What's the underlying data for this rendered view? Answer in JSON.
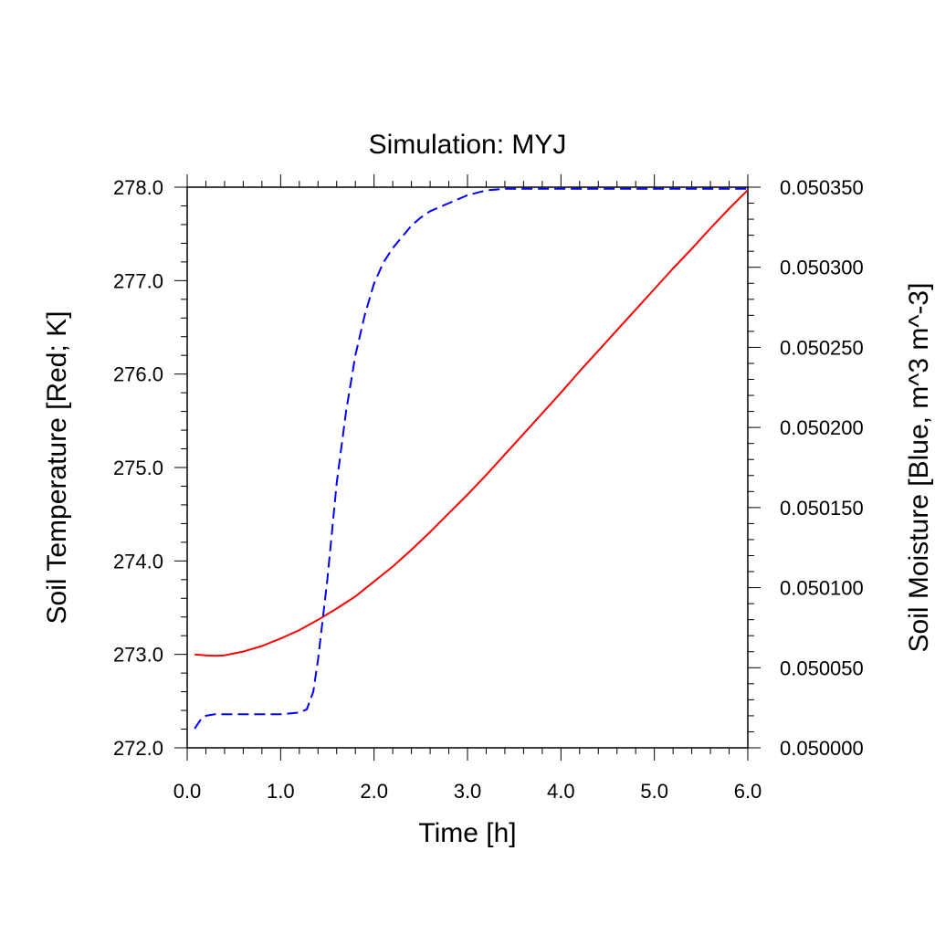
{
  "chart_data": {
    "type": "line",
    "title": "Simulation: MYJ",
    "xlabel": "Time [h]",
    "ylabel_left": "Soil Temperature [Red; K]",
    "ylabel_right": "Soil Moisture [Blue, m^3 m^-3]",
    "xlim": [
      0,
      6
    ],
    "ylim_left": [
      272,
      278
    ],
    "ylim_right": [
      0.05,
      0.05035
    ],
    "x_ticks": [
      "0.0",
      "1.0",
      "2.0",
      "3.0",
      "4.0",
      "5.0",
      "6.0"
    ],
    "y_left_ticks": [
      "272.0",
      "273.0",
      "274.0",
      "275.0",
      "276.0",
      "277.0",
      "278.0"
    ],
    "y_right_ticks": [
      "0.050000",
      "0.050050",
      "0.050100",
      "0.050150",
      "0.050200",
      "0.050250",
      "0.050300",
      "0.050350"
    ],
    "grid": false,
    "series": [
      {
        "axis": "left",
        "color": "#ff0000",
        "dash": "solid",
        "x": [
          0.08,
          0.2,
          0.3,
          0.4,
          0.6,
          0.8,
          1.0,
          1.2,
          1.4,
          1.6,
          1.8,
          2.0,
          2.2,
          2.4,
          2.6,
          2.8,
          3.0,
          3.2,
          3.4,
          3.6,
          3.8,
          4.0,
          4.2,
          4.4,
          4.6,
          4.8,
          5.0,
          5.2,
          5.4,
          5.6,
          5.8,
          6.0
        ],
        "y": [
          273.0,
          272.99,
          272.985,
          272.99,
          273.03,
          273.09,
          273.17,
          273.26,
          273.37,
          273.49,
          273.62,
          273.78,
          273.94,
          274.12,
          274.31,
          274.51,
          274.71,
          274.92,
          275.14,
          275.36,
          275.58,
          275.8,
          276.03,
          276.25,
          276.47,
          276.69,
          276.91,
          277.13,
          277.34,
          277.56,
          277.77,
          277.97
        ]
      },
      {
        "axis": "right",
        "color": "#0000ff",
        "dash": "dashed",
        "x": [
          0.08,
          0.15,
          0.2,
          0.3,
          0.5,
          0.8,
          1.0,
          1.2,
          1.28,
          1.35,
          1.4,
          1.45,
          1.5,
          1.55,
          1.6,
          1.7,
          1.8,
          1.9,
          2.0,
          2.1,
          2.2,
          2.3,
          2.4,
          2.5,
          2.6,
          2.8,
          3.0,
          3.2,
          3.4,
          3.6,
          3.8,
          4.0,
          4.5,
          5.0,
          5.5,
          6.0
        ],
        "y": [
          0.050012,
          0.050018,
          0.05002,
          0.050021,
          0.050021,
          0.050021,
          0.050021,
          0.050022,
          0.050024,
          0.050035,
          0.050055,
          0.05008,
          0.050105,
          0.050135,
          0.050165,
          0.05021,
          0.050245,
          0.05027,
          0.05029,
          0.050303,
          0.050312,
          0.050319,
          0.050326,
          0.050331,
          0.050335,
          0.05034,
          0.050345,
          0.050348,
          0.050349,
          0.050349,
          0.050349,
          0.050349,
          0.050349,
          0.050349,
          0.050349,
          0.050349
        ]
      }
    ]
  }
}
